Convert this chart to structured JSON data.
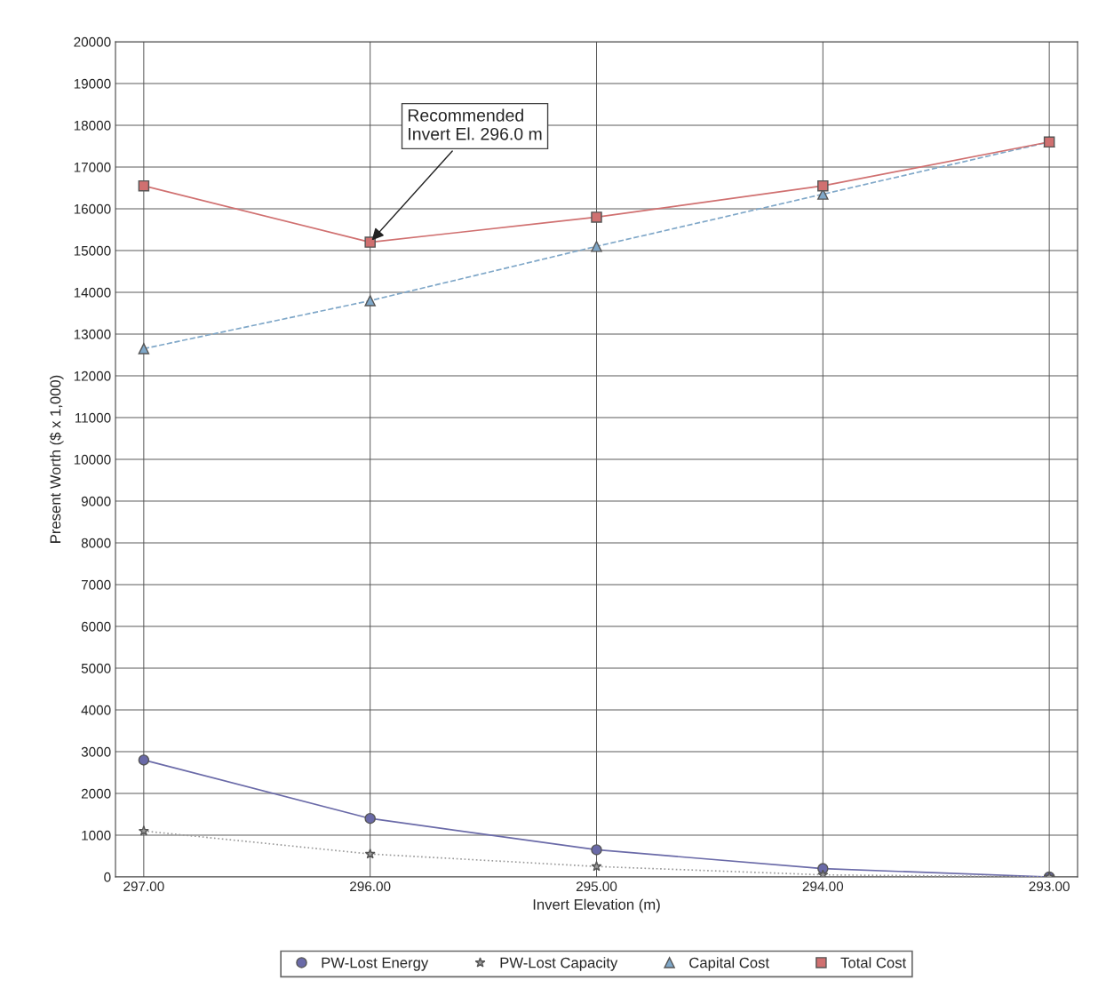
{
  "chart_data": {
    "type": "line",
    "xlabel": "Invert Elevation (m)",
    "ylabel": "Present Worth ($ x 1,000)",
    "x": [
      297,
      296,
      295,
      294,
      293
    ],
    "series": [
      {
        "name": "PW-Lost Energy",
        "color": "#6a6aa8",
        "marker": "circle",
        "line_style": "solid",
        "values": [
          2800,
          1400,
          650,
          200,
          0
        ]
      },
      {
        "name": "PW-Lost Capacity",
        "color": "#9a9a9a",
        "marker": "star",
        "line_style": "dotted",
        "values": [
          1100,
          550,
          250,
          50,
          0
        ]
      },
      {
        "name": "Capital Cost",
        "color": "#7fa7c8",
        "marker": "triangle",
        "line_style": "dashed",
        "values": [
          12650,
          13800,
          15100,
          16350,
          17600
        ]
      },
      {
        "name": "Total Cost",
        "color": "#d07070",
        "marker": "square",
        "line_style": "solid",
        "values": [
          16550,
          15200,
          15800,
          16550,
          17600
        ]
      }
    ],
    "xlim": [
      297.125,
      292.875
    ],
    "ylim": [
      0,
      20000
    ],
    "xticks": [
      {
        "value": 297,
        "label": "297.00"
      },
      {
        "value": 296,
        "label": "296.00"
      },
      {
        "value": 295,
        "label": "295.00"
      },
      {
        "value": 294,
        "label": "294.00"
      },
      {
        "value": 293,
        "label": "293.00"
      }
    ],
    "yticks": [
      0,
      1000,
      2000,
      3000,
      4000,
      5000,
      6000,
      7000,
      8000,
      9000,
      10000,
      11000,
      12000,
      13000,
      14000,
      15000,
      16000,
      17000,
      18000,
      19000,
      20000
    ],
    "grid": true,
    "legend": "bottom",
    "annotations": [
      {
        "text": "Recommended\nInvert El. 296.0 m",
        "x": 296,
        "y": 15200
      }
    ]
  }
}
